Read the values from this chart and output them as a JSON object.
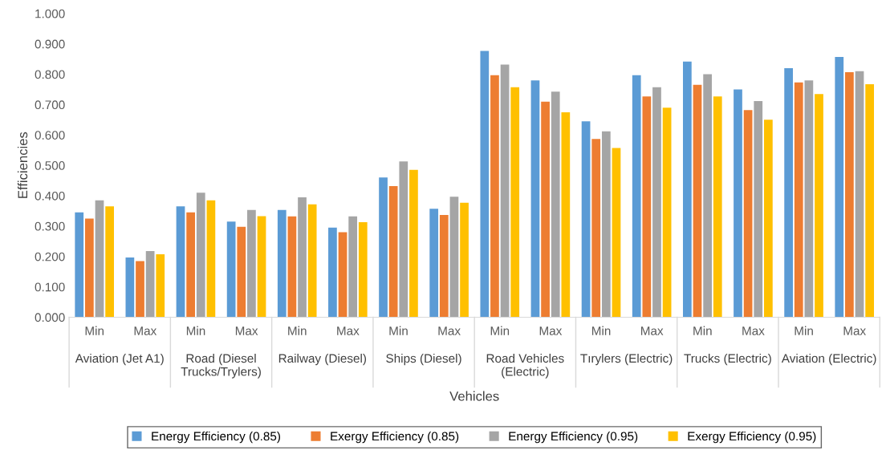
{
  "chart_data": {
    "type": "bar",
    "xlabel": "Vehicles",
    "ylabel": "Efficiencies",
    "categories": [
      "Min",
      "Max",
      "Min",
      "Max",
      "Min",
      "Max",
      "Min",
      "Max",
      "Min",
      "Max",
      "Min",
      "Max",
      "Min",
      "Max",
      "Min",
      "Max"
    ],
    "annotations": [
      "Aviation (Jet A1)",
      "Road (Diesel\nTrucks/Trylers)",
      "Railway (Diesel)",
      "Ships (Diesel)",
      "Road Vehicles\n(Electric)",
      "Tırylers (Electric)",
      "Trucks (Electric)",
      "Aviation (Electric)"
    ],
    "series": [
      {
        "name": "Energy Efficiency (0.85)",
        "color": "#5b9bd5",
        "values": [
          0.345,
          0.197,
          0.365,
          0.315,
          0.353,
          0.295,
          0.46,
          0.357,
          0.877,
          0.78,
          0.645,
          0.797,
          0.842,
          0.75,
          0.82,
          0.857
        ]
      },
      {
        "name": "Exergy Efficiency (0.85)",
        "color": "#ed7d31",
        "values": [
          0.325,
          0.185,
          0.345,
          0.298,
          0.332,
          0.28,
          0.432,
          0.337,
          0.797,
          0.71,
          0.587,
          0.727,
          0.765,
          0.682,
          0.773,
          0.807
        ]
      },
      {
        "name": "Energy Efficiency (0.95)",
        "color": "#a5a5a5",
        "values": [
          0.385,
          0.218,
          0.41,
          0.353,
          0.395,
          0.332,
          0.513,
          0.397,
          0.832,
          0.743,
          0.612,
          0.757,
          0.8,
          0.712,
          0.78,
          0.81
        ]
      },
      {
        "name": "Exergy Efficiency (0.95)",
        "color": "#ffc000",
        "values": [
          0.365,
          0.207,
          0.385,
          0.333,
          0.372,
          0.313,
          0.485,
          0.377,
          0.757,
          0.675,
          0.557,
          0.69,
          0.727,
          0.65,
          0.735,
          0.767
        ]
      }
    ],
    "ylim": [
      0,
      1.0
    ],
    "yticks": [
      {
        "value": 0,
        "label": "0.000"
      },
      {
        "value": 0.1,
        "label": "0.100"
      },
      {
        "value": 0.2,
        "label": "0.200"
      },
      {
        "value": 0.3,
        "label": "0.300"
      },
      {
        "value": 0.4,
        "label": "0.400"
      },
      {
        "value": 0.5,
        "label": "0.500"
      },
      {
        "value": 0.6,
        "label": "0.600"
      },
      {
        "value": 0.7,
        "label": "0.700"
      },
      {
        "value": 0.8,
        "label": "0.800"
      },
      {
        "value": 0.9,
        "label": "0.900"
      },
      {
        "value": 1.0,
        "label": "1.000"
      }
    ],
    "grid": false,
    "legend": "bottom"
  }
}
